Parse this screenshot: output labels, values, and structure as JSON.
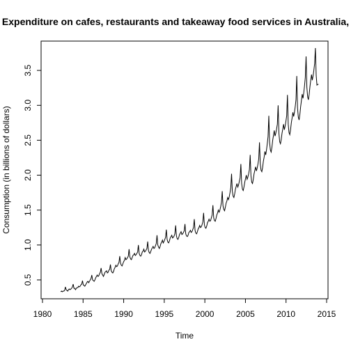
{
  "chart_data": {
    "type": "line",
    "title": "Expenditure on cafes, restaurants and takeaway food services in Australia,",
    "xlabel": "Time",
    "ylabel": "Consumption (in billions of dollars)",
    "xlim": [
      1980,
      2015
    ],
    "ylim": [
      0.25,
      3.9
    ],
    "x_ticks": [
      1980,
      1985,
      1990,
      1995,
      2000,
      2005,
      2010,
      2015
    ],
    "y_ticks": [
      0.5,
      1.0,
      1.5,
      2.0,
      2.5,
      3.0,
      3.5
    ],
    "x_tick_labels": [
      "1980",
      "1985",
      "1990",
      "1995",
      "2000",
      "2005",
      "2010",
      "2015"
    ],
    "y_tick_labels": [
      "0.5",
      "1.0",
      "1.5",
      "2.0",
      "2.5",
      "3.0",
      "3.5"
    ],
    "grid": false,
    "legend": "none",
    "frequency": "monthly",
    "start": 1982.25,
    "end": 2014.0,
    "series": [
      {
        "values": [
          0.33,
          0.34,
          0.33,
          0.34,
          0.34,
          0.35,
          0.4,
          0.36,
          0.35,
          0.34,
          0.36,
          0.37,
          0.36,
          0.37,
          0.38,
          0.4,
          0.44,
          0.38,
          0.38,
          0.36,
          0.38,
          0.39,
          0.39,
          0.41,
          0.4,
          0.41,
          0.43,
          0.44,
          0.49,
          0.43,
          0.42,
          0.41,
          0.43,
          0.45,
          0.47,
          0.48,
          0.46,
          0.48,
          0.5,
          0.52,
          0.57,
          0.5,
          0.49,
          0.48,
          0.5,
          0.53,
          0.55,
          0.57,
          0.55,
          0.56,
          0.59,
          0.61,
          0.67,
          0.59,
          0.57,
          0.55,
          0.58,
          0.61,
          0.62,
          0.63,
          0.6,
          0.61,
          0.64,
          0.65,
          0.72,
          0.63,
          0.61,
          0.6,
          0.62,
          0.66,
          0.68,
          0.71,
          0.69,
          0.7,
          0.73,
          0.75,
          0.84,
          0.74,
          0.71,
          0.7,
          0.73,
          0.76,
          0.78,
          0.82,
          0.79,
          0.8,
          0.82,
          0.84,
          0.94,
          0.83,
          0.8,
          0.79,
          0.82,
          0.85,
          0.86,
          0.88,
          0.85,
          0.86,
          0.88,
          0.9,
          1.0,
          0.88,
          0.85,
          0.84,
          0.86,
          0.9,
          0.91,
          0.94,
          0.9,
          0.91,
          0.93,
          0.95,
          1.05,
          0.92,
          0.89,
          0.88,
          0.91,
          0.94,
          0.96,
          0.98,
          0.95,
          0.96,
          0.99,
          1.02,
          1.14,
          1.0,
          0.97,
          0.95,
          0.98,
          1.02,
          1.04,
          1.07,
          1.03,
          1.05,
          1.08,
          1.11,
          1.22,
          1.08,
          1.04,
          1.03,
          1.06,
          1.1,
          1.12,
          1.14,
          1.1,
          1.11,
          1.13,
          1.16,
          1.28,
          1.13,
          1.09,
          1.08,
          1.11,
          1.15,
          1.17,
          1.19,
          1.15,
          1.16,
          1.18,
          1.2,
          1.3,
          1.16,
          1.13,
          1.12,
          1.14,
          1.18,
          1.19,
          1.21,
          1.18,
          1.19,
          1.22,
          1.25,
          1.37,
          1.21,
          1.17,
          1.16,
          1.19,
          1.23,
          1.25,
          1.28,
          1.25,
          1.26,
          1.29,
          1.33,
          1.46,
          1.29,
          1.25,
          1.24,
          1.27,
          1.32,
          1.34,
          1.37,
          1.34,
          1.35,
          1.39,
          1.43,
          1.57,
          1.39,
          1.35,
          1.34,
          1.38,
          1.43,
          1.46,
          1.5,
          1.47,
          1.5,
          1.55,
          1.61,
          1.77,
          1.56,
          1.51,
          1.49,
          1.54,
          1.6,
          1.63,
          1.68,
          1.65,
          1.69,
          1.75,
          1.82,
          2.02,
          1.77,
          1.7,
          1.68,
          1.73,
          1.8,
          1.84,
          1.88,
          1.83,
          1.86,
          1.91,
          1.96,
          2.16,
          1.88,
          1.8,
          1.78,
          1.83,
          1.9,
          1.95,
          2.0,
          1.94,
          1.97,
          2.02,
          2.08,
          2.29,
          1.99,
          1.9,
          1.88,
          1.94,
          2.02,
          2.07,
          2.12,
          2.06,
          2.1,
          2.16,
          2.23,
          2.47,
          2.16,
          2.07,
          2.05,
          2.11,
          2.2,
          2.26,
          2.34,
          2.29,
          2.36,
          2.45,
          2.55,
          2.85,
          2.47,
          2.36,
          2.33,
          2.4,
          2.5,
          2.57,
          2.64,
          2.56,
          2.6,
          2.66,
          2.73,
          3.0,
          2.6,
          2.48,
          2.45,
          2.51,
          2.6,
          2.66,
          2.73,
          2.65,
          2.7,
          2.77,
          2.85,
          3.15,
          2.73,
          2.61,
          2.58,
          2.65,
          2.75,
          2.82,
          2.9,
          2.84,
          2.9,
          2.98,
          3.08,
          3.42,
          2.96,
          2.83,
          2.79,
          2.87,
          2.98,
          3.07,
          3.16,
          3.1,
          3.18,
          3.28,
          3.4,
          3.7,
          3.26,
          3.12,
          3.08,
          3.16,
          3.27,
          3.36,
          3.44,
          3.36,
          3.42,
          3.5,
          3.6,
          3.82,
          3.43,
          3.29,
          3.3,
          3.3
        ]
      }
    ]
  }
}
